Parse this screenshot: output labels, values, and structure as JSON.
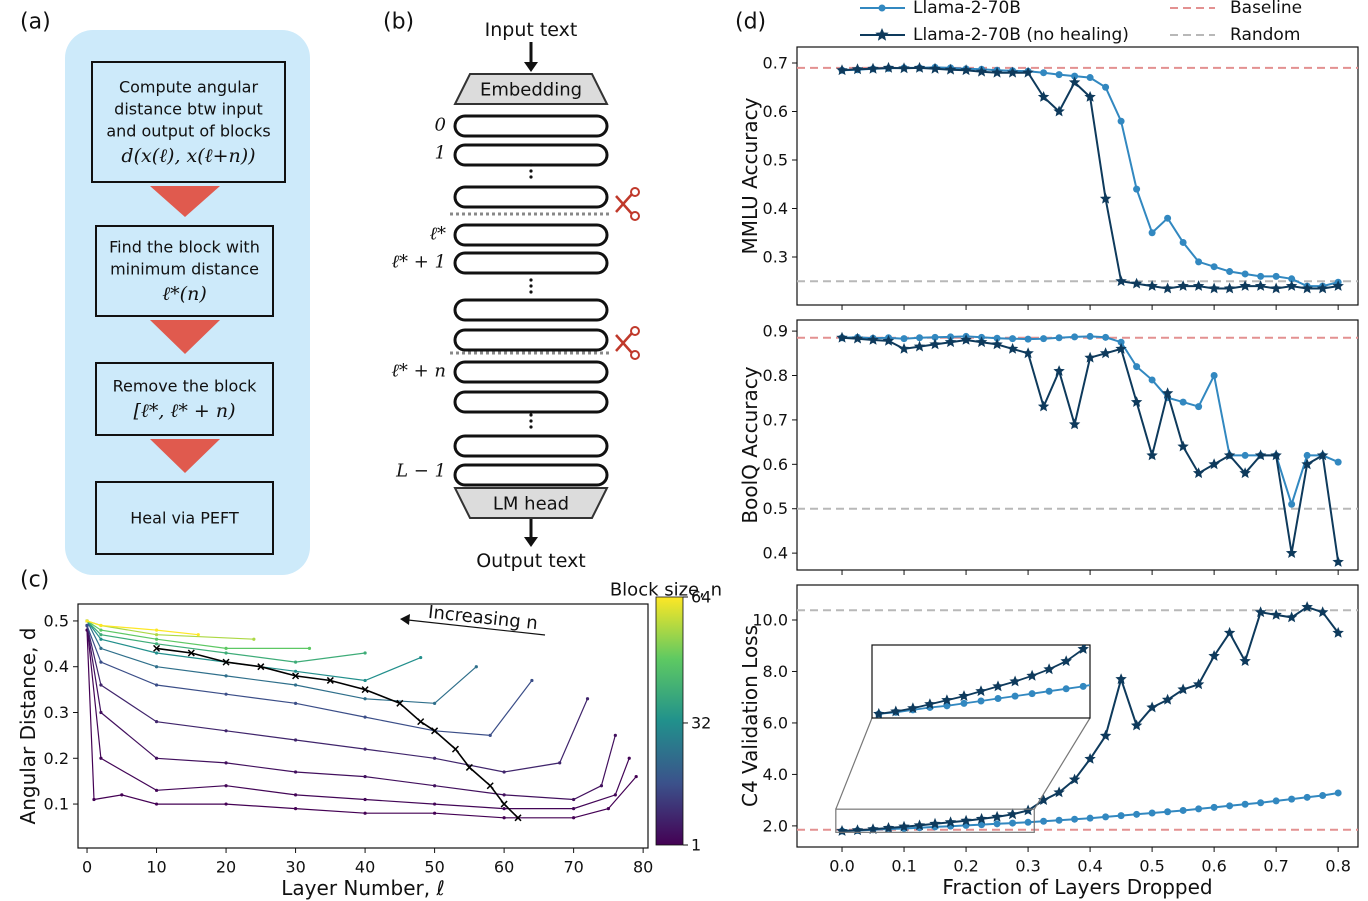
{
  "panel_a": {
    "label": "(a)",
    "steps": [
      {
        "text": [
          "Compute angular",
          "distance btw input",
          "and output of blocks"
        ],
        "formula": "d(x(ℓ), x(ℓ+n))"
      },
      {
        "text": [
          "Find the block with",
          "minimum distance"
        ],
        "formula": "ℓ*(n)"
      },
      {
        "text": [
          "Remove the block"
        ],
        "formula": "[ℓ*, ℓ* + n)"
      },
      {
        "text": [
          "Heal via PEFT"
        ]
      }
    ]
  },
  "panel_b": {
    "label": "(b)",
    "input": "Input text",
    "embedding": "Embedding",
    "layer_labels": [
      "0",
      "1",
      "ℓ*",
      "ℓ* + 1",
      "ℓ* + n",
      "L − 1"
    ],
    "head": "LM head",
    "output": "Output text"
  },
  "chart_data": [
    {
      "type": "line",
      "panel": "(c)",
      "xlabel": "Layer Number, ℓ",
      "ylabel": "Angular Distance, d",
      "xlim": [
        -1.3,
        80.7
      ],
      "ylim": [
        0.004,
        0.537
      ],
      "xticks": [
        0,
        10,
        20,
        30,
        40,
        50,
        60,
        70,
        80
      ],
      "yticks": [
        0.1,
        0.2,
        0.3,
        0.4,
        0.5
      ],
      "colorbar": {
        "label": "Block size, n",
        "colormap": "viridis",
        "ticks": [
          1,
          32,
          64
        ]
      },
      "annotation": "Increasing n",
      "series": [
        {
          "block_size": 1,
          "x": [
            0,
            1,
            5,
            10,
            20,
            30,
            40,
            50,
            60,
            70,
            75,
            79
          ],
          "values": [
            0.48,
            0.11,
            0.12,
            0.1,
            0.1,
            0.09,
            0.08,
            0.08,
            0.07,
            0.07,
            0.09,
            0.16
          ]
        },
        {
          "block_size": 2,
          "x": [
            0,
            2,
            10,
            20,
            30,
            40,
            50,
            60,
            70,
            76,
            78
          ],
          "values": [
            0.49,
            0.2,
            0.13,
            0.14,
            0.12,
            0.11,
            0.1,
            0.09,
            0.09,
            0.12,
            0.2
          ]
        },
        {
          "block_size": 4,
          "x": [
            0,
            2,
            10,
            20,
            30,
            40,
            50,
            60,
            70,
            74,
            76
          ],
          "values": [
            0.49,
            0.3,
            0.2,
            0.19,
            0.17,
            0.16,
            0.14,
            0.12,
            0.11,
            0.14,
            0.25
          ]
        },
        {
          "block_size": 8,
          "x": [
            0,
            2,
            10,
            20,
            30,
            40,
            50,
            60,
            68,
            72
          ],
          "values": [
            0.49,
            0.36,
            0.28,
            0.26,
            0.24,
            0.22,
            0.2,
            0.17,
            0.19,
            0.33
          ]
        },
        {
          "block_size": 16,
          "x": [
            0,
            2,
            10,
            20,
            30,
            40,
            50,
            58,
            64
          ],
          "values": [
            0.49,
            0.41,
            0.36,
            0.34,
            0.32,
            0.29,
            0.26,
            0.25,
            0.37
          ]
        },
        {
          "block_size": 24,
          "x": [
            0,
            2,
            10,
            20,
            30,
            40,
            50,
            56
          ],
          "values": [
            0.5,
            0.44,
            0.4,
            0.38,
            0.36,
            0.33,
            0.32,
            0.4
          ]
        },
        {
          "block_size": 32,
          "x": [
            0,
            2,
            10,
            20,
            30,
            40,
            48
          ],
          "values": [
            0.5,
            0.46,
            0.43,
            0.41,
            0.39,
            0.37,
            0.42
          ]
        },
        {
          "block_size": 40,
          "x": [
            0,
            2,
            10,
            20,
            30,
            40
          ],
          "values": [
            0.5,
            0.47,
            0.45,
            0.43,
            0.41,
            0.43
          ]
        },
        {
          "block_size": 48,
          "x": [
            0,
            2,
            10,
            20,
            32
          ],
          "values": [
            0.5,
            0.48,
            0.46,
            0.44,
            0.44
          ]
        },
        {
          "block_size": 56,
          "x": [
            0,
            2,
            10,
            24
          ],
          "values": [
            0.5,
            0.49,
            0.47,
            0.46
          ]
        },
        {
          "block_size": 64,
          "x": [
            0,
            2,
            10,
            16
          ],
          "values": [
            0.5,
            0.49,
            0.48,
            0.47
          ]
        }
      ],
      "optimal": {
        "color": "#000000",
        "x": [
          10,
          15,
          20,
          25,
          30,
          35,
          40,
          45,
          48,
          50,
          53,
          55,
          58,
          60,
          62
        ],
        "values": [
          0.44,
          0.43,
          0.41,
          0.4,
          0.38,
          0.37,
          0.35,
          0.32,
          0.28,
          0.26,
          0.22,
          0.18,
          0.14,
          0.1,
          0.07
        ]
      }
    },
    {
      "type": "line",
      "panel": "(d)",
      "ylabel": "MMLU Accuracy",
      "x": [
        0,
        0.025,
        0.05,
        0.075,
        0.1,
        0.125,
        0.15,
        0.175,
        0.2,
        0.225,
        0.25,
        0.275,
        0.3,
        0.325,
        0.35,
        0.375,
        0.4,
        0.425,
        0.45,
        0.475,
        0.5,
        0.525,
        0.55,
        0.575,
        0.6,
        0.625,
        0.65,
        0.675,
        0.7,
        0.725,
        0.75,
        0.775,
        0.8
      ],
      "xlim": [
        -0.0726,
        0.832
      ],
      "ylim": [
        0.201,
        0.733
      ],
      "yticks": [
        0.3,
        0.4,
        0.5,
        0.6,
        0.7
      ],
      "reference_lines": [
        {
          "name": "Baseline",
          "color": "#e39191",
          "value": 0.69
        },
        {
          "name": "Random",
          "color": "#b8b8b8",
          "value": 0.25
        }
      ],
      "series": [
        {
          "name": "Llama-2-70B",
          "color": "#3288c0",
          "marker": "circle",
          "values": [
            0.685,
            0.686,
            0.688,
            0.689,
            0.69,
            0.69,
            0.691,
            0.69,
            0.688,
            0.687,
            0.685,
            0.684,
            0.683,
            0.68,
            0.676,
            0.673,
            0.67,
            0.65,
            0.58,
            0.44,
            0.35,
            0.38,
            0.33,
            0.29,
            0.28,
            0.27,
            0.265,
            0.26,
            0.26,
            0.255,
            0.24,
            0.24,
            0.248
          ]
        },
        {
          "name": "Llama-2-70B (no healing)",
          "color": "#0e3a5c",
          "marker": "star",
          "values": [
            0.685,
            0.687,
            0.688,
            0.69,
            0.689,
            0.69,
            0.688,
            0.686,
            0.685,
            0.682,
            0.68,
            0.68,
            0.68,
            0.63,
            0.6,
            0.66,
            0.63,
            0.42,
            0.25,
            0.245,
            0.24,
            0.235,
            0.24,
            0.24,
            0.235,
            0.235,
            0.24,
            0.24,
            0.235,
            0.24,
            0.235,
            0.235,
            0.24
          ]
        }
      ]
    },
    {
      "type": "line",
      "ylabel": "BoolQ Accuracy",
      "x": [
        0,
        0.025,
        0.05,
        0.075,
        0.1,
        0.125,
        0.15,
        0.175,
        0.2,
        0.225,
        0.25,
        0.275,
        0.3,
        0.325,
        0.35,
        0.375,
        0.4,
        0.425,
        0.45,
        0.475,
        0.5,
        0.525,
        0.55,
        0.575,
        0.6,
        0.625,
        0.65,
        0.675,
        0.7,
        0.725,
        0.75,
        0.775,
        0.8
      ],
      "xlim": [
        -0.0726,
        0.832
      ],
      "ylim": [
        0.362,
        0.925
      ],
      "yticks": [
        0.4,
        0.5,
        0.6,
        0.7,
        0.8,
        0.9
      ],
      "reference_lines": [
        {
          "color": "#e39191",
          "value": 0.885
        },
        {
          "color": "#b8b8b8",
          "value": 0.5
        }
      ],
      "series": [
        {
          "color": "#3288c0",
          "marker": "circle",
          "values": [
            0.885,
            0.886,
            0.884,
            0.885,
            0.883,
            0.885,
            0.886,
            0.887,
            0.888,
            0.886,
            0.884,
            0.883,
            0.882,
            0.883,
            0.885,
            0.887,
            0.888,
            0.886,
            0.875,
            0.82,
            0.79,
            0.75,
            0.74,
            0.73,
            0.8,
            0.62,
            0.62,
            0.62,
            0.62,
            0.51,
            0.62,
            0.62,
            0.605
          ]
        },
        {
          "color": "#0e3a5c",
          "marker": "star",
          "values": [
            0.885,
            0.883,
            0.88,
            0.878,
            0.86,
            0.865,
            0.87,
            0.875,
            0.88,
            0.875,
            0.87,
            0.86,
            0.85,
            0.73,
            0.81,
            0.69,
            0.84,
            0.85,
            0.86,
            0.74,
            0.62,
            0.76,
            0.64,
            0.58,
            0.6,
            0.62,
            0.58,
            0.62,
            0.62,
            0.4,
            0.6,
            0.62,
            0.38
          ]
        }
      ]
    },
    {
      "type": "line",
      "ylabel": "C4 Validation Loss",
      "xlabel": "Fraction of Layers Dropped",
      "x": [
        0,
        0.025,
        0.05,
        0.075,
        0.1,
        0.125,
        0.15,
        0.175,
        0.2,
        0.225,
        0.25,
        0.275,
        0.3,
        0.325,
        0.35,
        0.375,
        0.4,
        0.425,
        0.45,
        0.475,
        0.5,
        0.525,
        0.55,
        0.575,
        0.6,
        0.625,
        0.65,
        0.675,
        0.7,
        0.725,
        0.75,
        0.775,
        0.8
      ],
      "xlim": [
        -0.0726,
        0.832
      ],
      "ylim": [
        1.18,
        11.36
      ],
      "xticks": [
        {
          "value": 0,
          "label": "0.0"
        },
        0.1,
        0.2,
        0.3,
        0.4,
        0.5,
        0.6,
        0.7,
        0.8
      ],
      "yticks": [
        {
          "value": 2,
          "label": "2.0"
        },
        {
          "value": 4,
          "label": "4.0"
        },
        {
          "value": 6,
          "label": "6.0"
        },
        {
          "value": 8,
          "label": "8.0"
        },
        {
          "value": 10,
          "label": "10.0"
        }
      ],
      "reference_lines": [
        {
          "color": "#e39191",
          "value": 1.85
        },
        {
          "color": "#b8b8b8",
          "value": 10.38
        }
      ],
      "inset": {
        "xlim": [
          -0.01,
          0.31
        ],
        "ylim": [
          1.75,
          2.65
        ]
      },
      "series": [
        {
          "color": "#3288c0",
          "marker": "circle",
          "values": [
            1.8,
            1.82,
            1.85,
            1.88,
            1.9,
            1.93,
            1.96,
            1.99,
            2.02,
            2.05,
            2.08,
            2.11,
            2.14,
            2.18,
            2.22,
            2.26,
            2.3,
            2.35,
            2.4,
            2.45,
            2.5,
            2.55,
            2.6,
            2.66,
            2.72,
            2.78,
            2.84,
            2.9,
            2.97,
            3.04,
            3.11,
            3.18,
            3.28
          ]
        },
        {
          "color": "#0e3a5c",
          "marker": "star",
          "values": [
            1.8,
            1.83,
            1.87,
            1.92,
            1.97,
            2.02,
            2.08,
            2.14,
            2.2,
            2.27,
            2.35,
            2.45,
            2.6,
            3.0,
            3.3,
            3.8,
            4.6,
            5.5,
            7.7,
            5.9,
            6.6,
            6.9,
            7.3,
            7.5,
            8.6,
            9.5,
            8.4,
            10.3,
            10.2,
            10.1,
            10.5,
            10.3,
            9.5
          ]
        }
      ]
    }
  ]
}
